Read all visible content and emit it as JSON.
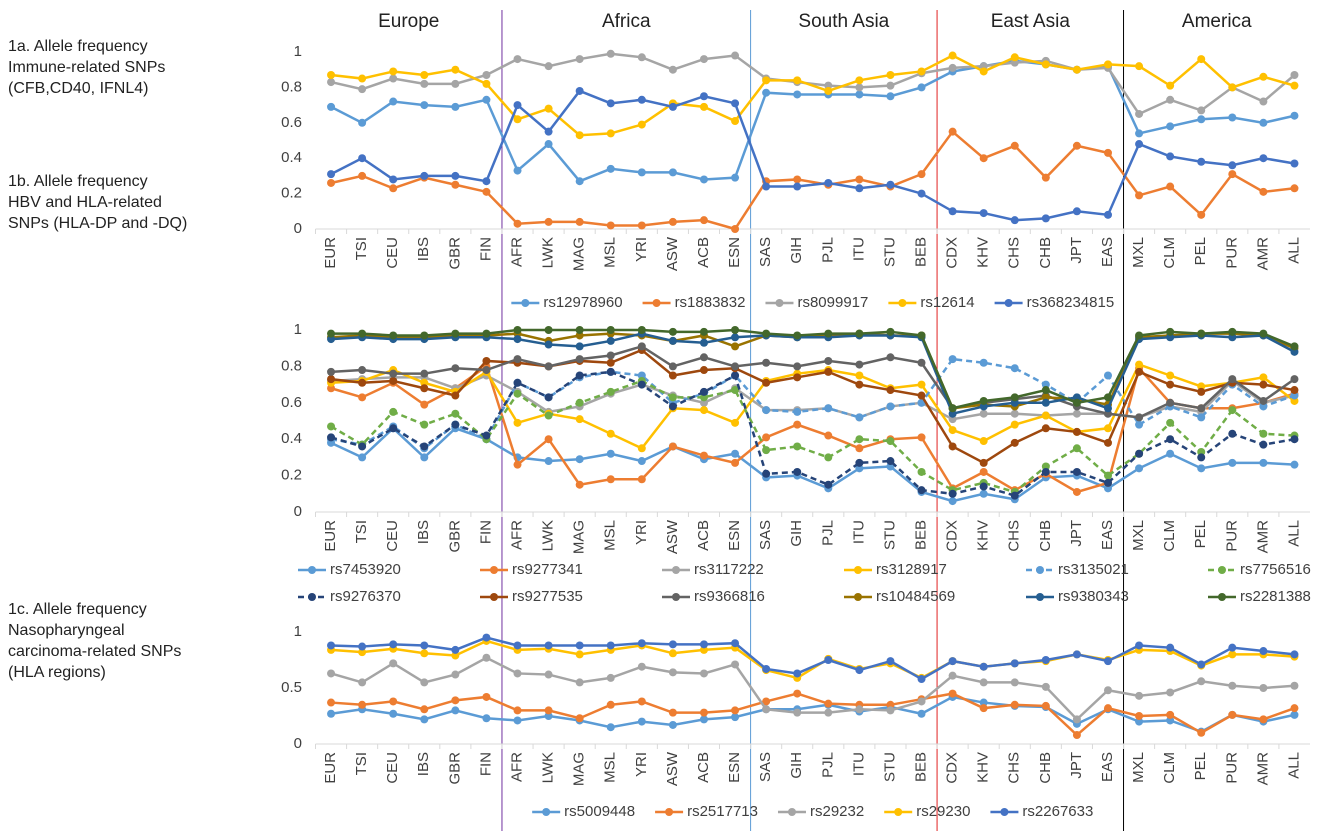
{
  "regions": [
    {
      "name": "Europe",
      "from": "EUR",
      "to": "FIN",
      "divider_color": "#7030a0"
    },
    {
      "name": "Africa",
      "from": "AFR",
      "to": "ESN",
      "divider_color": "#5b9bd5"
    },
    {
      "name": "South Asia",
      "from": "SAS",
      "to": "BEB",
      "divider_color": "#e02020"
    },
    {
      "name": "East Asia",
      "from": "CDX",
      "to": "EAS",
      "divider_color": "#000000"
    },
    {
      "name": "America",
      "from": "MXL",
      "to": "ALL"
    }
  ],
  "chart_data": [
    {
      "type": "line",
      "title": [
        "1a. Allele frequency",
        "Immune-related SNPs",
        "(CFB,CD40, IFNL4)"
      ],
      "categories": [
        "EUR",
        "TSI",
        "CEU",
        "IBS",
        "GBR",
        "FIN",
        "AFR",
        "LWK",
        "MAG",
        "MSL",
        "YRI",
        "ASW",
        "ACB",
        "ESN",
        "SAS",
        "GIH",
        "PJL",
        "ITU",
        "STU",
        "BEB",
        "CDX",
        "KHV",
        "CHS",
        "CHB",
        "JPT",
        "EAS",
        "MXL",
        "CLM",
        "PEL",
        "PUR",
        "AMR",
        "ALL"
      ],
      "ylim": [
        0,
        1
      ],
      "yticks": [
        0,
        {
          "value": 0.2,
          "label": "0.2"
        },
        {
          "value": 0.4,
          "label": "0.4"
        },
        {
          "value": 0.6,
          "label": "0.6"
        },
        {
          "value": 0.8,
          "label": "0.8"
        },
        1
      ],
      "series": [
        {
          "name": "rs12978960",
          "color": "#5b9bd5",
          "values": [
            0.69,
            0.6,
            0.72,
            0.7,
            0.69,
            0.73,
            0.33,
            0.48,
            0.27,
            0.34,
            0.32,
            0.32,
            0.28,
            0.29,
            0.77,
            0.76,
            0.76,
            0.76,
            0.75,
            0.8,
            0.89,
            0.92,
            0.95,
            0.93,
            0.9,
            0.92,
            0.54,
            0.58,
            0.62,
            0.63,
            0.6,
            0.64
          ]
        },
        {
          "name": "rs1883832",
          "color": "#ed7d31",
          "values": [
            0.26,
            0.3,
            0.23,
            0.29,
            0.25,
            0.21,
            0.03,
            0.04,
            0.04,
            0.02,
            0.02,
            0.04,
            0.05,
            0.0,
            0.27,
            0.28,
            0.25,
            0.28,
            0.24,
            0.31,
            0.55,
            0.4,
            0.47,
            0.29,
            0.47,
            0.43,
            0.19,
            0.24,
            0.08,
            0.31,
            0.21,
            0.23
          ]
        },
        {
          "name": "rs8099917",
          "color": "#a5a5a5",
          "values": [
            0.83,
            0.79,
            0.85,
            0.82,
            0.82,
            0.87,
            0.96,
            0.92,
            0.96,
            0.99,
            0.97,
            0.9,
            0.96,
            0.98,
            0.85,
            0.83,
            0.81,
            0.8,
            0.81,
            0.88,
            0.91,
            0.92,
            0.94,
            0.95,
            0.9,
            0.91,
            0.65,
            0.73,
            0.67,
            0.8,
            0.72,
            0.87
          ]
        },
        {
          "name": "rs12614",
          "color": "#ffc000",
          "values": [
            0.87,
            0.85,
            0.89,
            0.87,
            0.9,
            0.82,
            0.62,
            0.68,
            0.53,
            0.54,
            0.59,
            0.71,
            0.69,
            0.61,
            0.84,
            0.84,
            0.78,
            0.84,
            0.87,
            0.89,
            0.98,
            0.89,
            0.97,
            0.93,
            0.9,
            0.93,
            0.92,
            0.81,
            0.96,
            0.8,
            0.86,
            0.81
          ]
        },
        {
          "name": "rs368234815",
          "color": "#4472c4",
          "values": [
            0.31,
            0.4,
            0.28,
            0.3,
            0.3,
            0.27,
            0.7,
            0.55,
            0.78,
            0.71,
            0.73,
            0.69,
            0.75,
            0.71,
            0.24,
            0.24,
            0.26,
            0.23,
            0.25,
            0.2,
            0.1,
            0.09,
            0.05,
            0.06,
            0.1,
            0.08,
            0.48,
            0.41,
            0.38,
            0.36,
            0.4,
            0.37
          ]
        }
      ]
    },
    {
      "type": "line",
      "title": [
        "1b. Allele frequency",
        "HBV and HLA-related",
        "SNPs (HLA-DP and -DQ)"
      ],
      "categories": [
        "EUR",
        "TSI",
        "CEU",
        "IBS",
        "GBR",
        "FIN",
        "AFR",
        "LWK",
        "MAG",
        "MSL",
        "YRI",
        "ASW",
        "ACB",
        "ESN",
        "SAS",
        "GIH",
        "PJL",
        "ITU",
        "STU",
        "BEB",
        "CDX",
        "KHV",
        "CHS",
        "CHB",
        "JPT",
        "EAS",
        "MXL",
        "CLM",
        "PEL",
        "PUR",
        "AMR",
        "ALL"
      ],
      "ylim": [
        0,
        1
      ],
      "yticks": [
        0,
        {
          "value": 0.2,
          "label": "0.2"
        },
        {
          "value": 0.4,
          "label": "0.4"
        },
        {
          "value": 0.6,
          "label": "0.6"
        },
        {
          "value": 0.8,
          "label": "0.8"
        },
        1
      ],
      "series": [
        {
          "name": "rs7453920",
          "color": "#5b9bd5",
          "values": [
            0.38,
            0.3,
            0.46,
            0.3,
            0.46,
            0.4,
            0.3,
            0.28,
            0.29,
            0.32,
            0.28,
            0.36,
            0.29,
            0.32,
            0.19,
            0.2,
            0.13,
            0.24,
            0.25,
            0.11,
            0.06,
            0.1,
            0.07,
            0.19,
            0.2,
            0.13,
            0.24,
            0.32,
            0.24,
            0.27,
            0.27,
            0.26
          ]
        },
        {
          "name": "rs9277341",
          "color": "#ed7d31",
          "values": [
            0.68,
            0.63,
            0.71,
            0.59,
            0.68,
            0.8,
            0.26,
            0.4,
            0.15,
            0.18,
            0.18,
            0.36,
            0.31,
            0.27,
            0.41,
            0.48,
            0.42,
            0.35,
            0.4,
            0.41,
            0.13,
            0.22,
            0.12,
            0.21,
            0.11,
            0.16,
            0.79,
            0.6,
            0.57,
            0.57,
            0.6,
            0.65
          ]
        },
        {
          "name": "rs3117222",
          "color": "#a5a5a5",
          "values": [
            0.72,
            0.73,
            0.74,
            0.74,
            0.68,
            0.75,
            0.66,
            0.55,
            0.58,
            0.65,
            0.7,
            0.64,
            0.6,
            0.68,
            0.56,
            0.56,
            0.57,
            0.52,
            0.58,
            0.6,
            0.51,
            0.54,
            0.54,
            0.53,
            0.54,
            0.54,
            0.52,
            0.58,
            0.55,
            0.72,
            0.6,
            0.64
          ]
        },
        {
          "name": "rs3128917",
          "color": "#ffc000",
          "values": [
            0.71,
            0.72,
            0.78,
            0.71,
            0.66,
            0.77,
            0.49,
            0.54,
            0.51,
            0.43,
            0.35,
            0.57,
            0.56,
            0.49,
            0.72,
            0.76,
            0.78,
            0.75,
            0.68,
            0.7,
            0.45,
            0.39,
            0.48,
            0.53,
            0.44,
            0.46,
            0.81,
            0.75,
            0.69,
            0.71,
            0.74,
            0.61
          ]
        },
        {
          "name": "rs3135021",
          "color": "#5b9bd5",
          "dashed": true,
          "values": [
            0.4,
            0.37,
            0.47,
            0.35,
            0.48,
            0.4,
            0.71,
            0.63,
            0.74,
            0.77,
            0.75,
            0.6,
            0.65,
            0.75,
            0.56,
            0.55,
            0.57,
            0.52,
            0.58,
            0.6,
            0.84,
            0.82,
            0.79,
            0.7,
            0.6,
            0.75,
            0.48,
            0.58,
            0.52,
            0.7,
            0.58,
            0.64
          ]
        },
        {
          "name": "rs7756516",
          "color": "#70ad47",
          "dashed": true,
          "values": [
            0.47,
            0.37,
            0.55,
            0.48,
            0.54,
            0.4,
            0.65,
            0.53,
            0.6,
            0.66,
            0.72,
            0.63,
            0.63,
            0.67,
            0.34,
            0.36,
            0.3,
            0.4,
            0.39,
            0.22,
            0.12,
            0.16,
            0.11,
            0.25,
            0.35,
            0.2,
            0.32,
            0.49,
            0.33,
            0.56,
            0.43,
            0.42
          ]
        },
        {
          "name": "rs9276370",
          "color": "#264478",
          "dashed": true,
          "values": [
            0.41,
            0.36,
            0.46,
            0.36,
            0.48,
            0.42,
            0.71,
            0.63,
            0.75,
            0.77,
            0.7,
            0.58,
            0.66,
            0.75,
            0.21,
            0.22,
            0.15,
            0.27,
            0.28,
            0.12,
            0.1,
            0.14,
            0.09,
            0.22,
            0.22,
            0.16,
            0.32,
            0.4,
            0.3,
            0.43,
            0.37,
            0.4
          ]
        },
        {
          "name": "rs9277535",
          "color": "#9e480e",
          "values": [
            0.73,
            0.71,
            0.72,
            0.68,
            0.64,
            0.83,
            0.82,
            0.8,
            0.83,
            0.82,
            0.89,
            0.75,
            0.78,
            0.79,
            0.71,
            0.74,
            0.77,
            0.7,
            0.67,
            0.64,
            0.36,
            0.27,
            0.38,
            0.46,
            0.44,
            0.38,
            0.77,
            0.7,
            0.66,
            0.71,
            0.7,
            0.67
          ]
        },
        {
          "name": "rs9366816",
          "color": "#636363",
          "values": [
            0.77,
            0.78,
            0.76,
            0.76,
            0.79,
            0.78,
            0.84,
            0.8,
            0.84,
            0.86,
            0.91,
            0.8,
            0.85,
            0.8,
            0.82,
            0.8,
            0.83,
            0.81,
            0.85,
            0.82,
            0.57,
            0.6,
            0.62,
            0.64,
            0.58,
            0.54,
            0.52,
            0.6,
            0.57,
            0.73,
            0.61,
            0.73
          ]
        },
        {
          "name": "rs10484569",
          "color": "#997300",
          "values": [
            0.96,
            0.97,
            0.96,
            0.96,
            0.97,
            0.97,
            0.98,
            0.94,
            0.97,
            0.98,
            0.97,
            0.94,
            0.97,
            0.91,
            0.97,
            0.96,
            0.97,
            0.98,
            0.97,
            0.97,
            0.57,
            0.59,
            0.58,
            0.63,
            0.62,
            0.59,
            0.96,
            0.97,
            0.98,
            0.98,
            0.97,
            0.9
          ]
        },
        {
          "name": "rs9380343",
          "color": "#255e91",
          "values": [
            0.95,
            0.96,
            0.95,
            0.95,
            0.96,
            0.96,
            0.95,
            0.92,
            0.91,
            0.94,
            0.98,
            0.94,
            0.93,
            0.96,
            0.97,
            0.96,
            0.96,
            0.97,
            0.97,
            0.96,
            0.54,
            0.58,
            0.6,
            0.6,
            0.63,
            0.57,
            0.95,
            0.96,
            0.97,
            0.96,
            0.97,
            0.88
          ]
        },
        {
          "name": "rs2281388",
          "color": "#43682b",
          "values": [
            0.98,
            0.98,
            0.97,
            0.97,
            0.98,
            0.98,
            1.0,
            1.0,
            1.0,
            1.0,
            1.0,
            0.99,
            0.99,
            1.0,
            0.98,
            0.97,
            0.98,
            0.98,
            0.99,
            0.97,
            0.57,
            0.61,
            0.63,
            0.67,
            0.6,
            0.63,
            0.97,
            0.99,
            0.98,
            0.99,
            0.98,
            0.91
          ]
        }
      ]
    },
    {
      "type": "line",
      "title": [
        "1c. Allele frequency",
        "Nasopharyngeal",
        "carcinoma-related SNPs",
        "(HLA regions)"
      ],
      "categories": [
        "EUR",
        "TSI",
        "CEU",
        "IBS",
        "GBR",
        "FIN",
        "AFR",
        "LWK",
        "MAG",
        "MSL",
        "YRI",
        "ASW",
        "ACB",
        "ESN",
        "SAS",
        "GIH",
        "PJL",
        "ITU",
        "STU",
        "BEB",
        "CDX",
        "KHV",
        "CHS",
        "CHB",
        "JPT",
        "EAS",
        "MXL",
        "CLM",
        "PEL",
        "PUR",
        "AMR",
        "ALL"
      ],
      "ylim": [
        0,
        1
      ],
      "yticks": [
        0,
        {
          "value": 0.5,
          "label": "0.5"
        },
        1
      ],
      "series": [
        {
          "name": "rs5009448",
          "color": "#5b9bd5",
          "values": [
            0.27,
            0.31,
            0.27,
            0.22,
            0.3,
            0.23,
            0.21,
            0.25,
            0.21,
            0.15,
            0.2,
            0.17,
            0.22,
            0.24,
            0.31,
            0.31,
            0.35,
            0.29,
            0.33,
            0.27,
            0.42,
            0.37,
            0.34,
            0.33,
            0.18,
            0.31,
            0.2,
            0.21,
            0.11,
            0.26,
            0.2,
            0.26
          ]
        },
        {
          "name": "rs2517713",
          "color": "#ed7d31",
          "values": [
            0.37,
            0.35,
            0.38,
            0.31,
            0.39,
            0.42,
            0.3,
            0.3,
            0.23,
            0.35,
            0.38,
            0.28,
            0.28,
            0.3,
            0.38,
            0.45,
            0.36,
            0.35,
            0.35,
            0.4,
            0.45,
            0.32,
            0.35,
            0.34,
            0.08,
            0.32,
            0.25,
            0.26,
            0.1,
            0.26,
            0.22,
            0.32
          ]
        },
        {
          "name": "rs29232",
          "color": "#a5a5a5",
          "values": [
            0.63,
            0.55,
            0.72,
            0.55,
            0.62,
            0.77,
            0.63,
            0.62,
            0.55,
            0.59,
            0.69,
            0.64,
            0.63,
            0.71,
            0.31,
            0.28,
            0.28,
            0.31,
            0.3,
            0.38,
            0.61,
            0.55,
            0.55,
            0.51,
            0.22,
            0.48,
            0.43,
            0.46,
            0.56,
            0.52,
            0.5,
            0.52
          ]
        },
        {
          "name": "rs29230",
          "color": "#ffc000",
          "values": [
            0.84,
            0.82,
            0.85,
            0.81,
            0.79,
            0.92,
            0.84,
            0.85,
            0.8,
            0.84,
            0.88,
            0.81,
            0.84,
            0.86,
            0.66,
            0.59,
            0.76,
            0.67,
            0.72,
            0.59,
            0.74,
            0.69,
            0.72,
            0.74,
            0.8,
            0.75,
            0.84,
            0.83,
            0.7,
            0.8,
            0.8,
            0.78
          ]
        },
        {
          "name": "rs2267633",
          "color": "#4472c4",
          "values": [
            0.88,
            0.87,
            0.89,
            0.88,
            0.84,
            0.95,
            0.88,
            0.88,
            0.88,
            0.88,
            0.9,
            0.89,
            0.89,
            0.9,
            0.67,
            0.63,
            0.75,
            0.66,
            0.74,
            0.58,
            0.74,
            0.69,
            0.72,
            0.75,
            0.8,
            0.74,
            0.88,
            0.86,
            0.71,
            0.86,
            0.83,
            0.8
          ]
        }
      ]
    }
  ]
}
